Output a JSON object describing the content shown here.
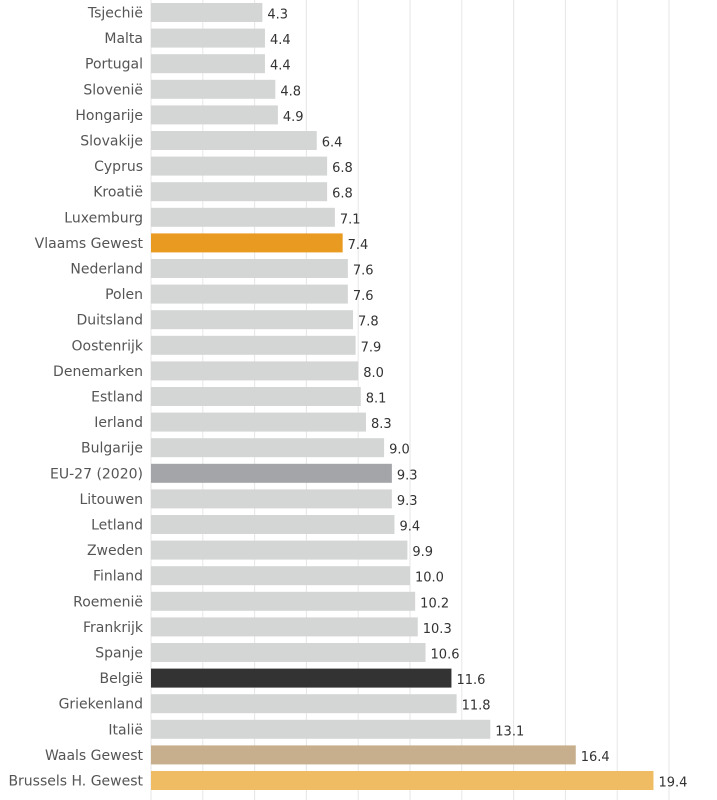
{
  "chart_data": {
    "type": "bar",
    "orientation": "horizontal",
    "categories": [
      "Tsjechië",
      "Malta",
      "Portugal",
      "Slovenië",
      "Hongarije",
      "Slovakije",
      "Cyprus",
      "Kroatië",
      "Luxemburg",
      "Vlaams Gewest",
      "Nederland",
      "Polen",
      "Duitsland",
      "Oostenrijk",
      "Denemarken",
      "Estland",
      "Ierland",
      "Bulgarije",
      "EU-27 (2020)",
      "Litouwen",
      "Letland",
      "Zweden",
      "Finland",
      "Roemenië",
      "Frankrijk",
      "Spanje",
      "België",
      "Griekenland",
      "Italië",
      "Waals Gewest",
      "Brussels H. Gewest"
    ],
    "values": [
      4.3,
      4.4,
      4.4,
      4.8,
      4.9,
      6.4,
      6.8,
      6.8,
      7.1,
      7.4,
      7.6,
      7.6,
      7.8,
      7.9,
      8.0,
      8.1,
      8.3,
      9.0,
      9.3,
      9.3,
      9.4,
      9.9,
      10.0,
      10.2,
      10.3,
      10.6,
      11.6,
      11.8,
      13.1,
      16.4,
      19.4
    ],
    "value_labels": [
      "4.3",
      "4.4",
      "4.4",
      "4.8",
      "4.9",
      "6.4",
      "6.8",
      "6.8",
      "7.1",
      "7.4",
      "7.6",
      "7.6",
      "7.8",
      "7.9",
      "8.0",
      "8.1",
      "8.3",
      "9.0",
      "9.3",
      "9.3",
      "9.4",
      "9.9",
      "10.0",
      "10.2",
      "10.3",
      "10.6",
      "11.6",
      "11.8",
      "13.1",
      "16.4",
      "19.4"
    ],
    "xlim": [
      0,
      22
    ],
    "grid": "vertical",
    "colors": {
      "default": "#d4d6d5",
      "Vlaams Gewest": "#e89b20",
      "EU-27 (2020)": "#a3a5a8",
      "België": "#333333",
      "Waals Gewest": "#c7ae8c",
      "Brussels H. Gewest": "#f0bc63"
    }
  }
}
